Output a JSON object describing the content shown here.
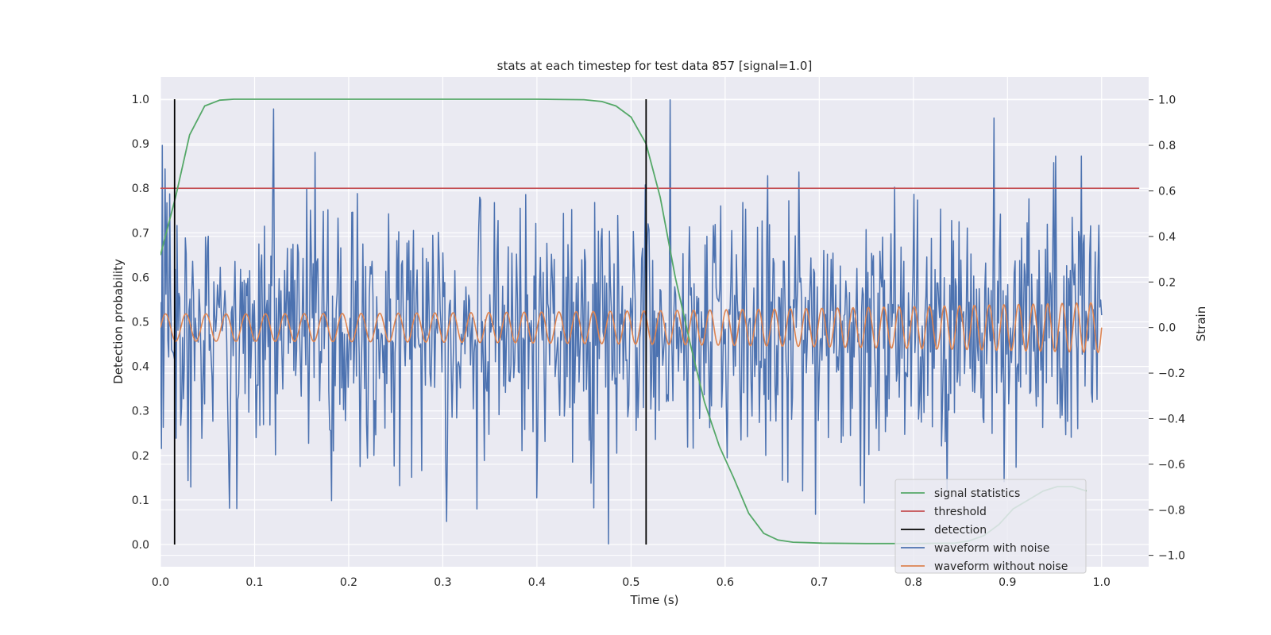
{
  "chart_data": {
    "type": "line",
    "title": "stats at each timestep for test data 857 [signal=1.0]",
    "xlabel": "Time (s)",
    "ylabel": "Detection probability",
    "ylabel_right": "Strain",
    "xlim": [
      0.0,
      1.05
    ],
    "ylim": [
      -0.05,
      1.05
    ],
    "ylim_right": [
      -1.05,
      1.1
    ],
    "x_ticks": [
      "0.0",
      "0.1",
      "0.2",
      "0.3",
      "0.4",
      "0.5",
      "0.6",
      "0.7",
      "0.8",
      "0.9",
      "1.0"
    ],
    "y_ticks": [
      "0.0",
      "0.1",
      "0.2",
      "0.3",
      "0.4",
      "0.5",
      "0.6",
      "0.7",
      "0.8",
      "0.9",
      "1.0"
    ],
    "y_ticks_right": [
      "−1.0",
      "−0.8",
      "−0.6",
      "−0.4",
      "−0.2",
      "0.0",
      "0.2",
      "0.4",
      "0.6",
      "0.8",
      "1.0"
    ],
    "grid": true,
    "legend_position": "lower-right",
    "colors": {
      "signal_statistics": "#55a868",
      "threshold": "#c44e52",
      "detection": "#000000",
      "waveform_with_noise": "#4c72b0",
      "waveform_without_noise": "#dd8452",
      "background": "#eaeaf2",
      "grid": "#ffffff"
    },
    "series": [
      {
        "name": "signal statistics",
        "axis": "left",
        "x": [
          0.0,
          0.016,
          0.031,
          0.047,
          0.063,
          0.078,
          0.094,
          0.2,
          0.3,
          0.4,
          0.45,
          0.469,
          0.484,
          0.5,
          0.516,
          0.531,
          0.547,
          0.563,
          0.578,
          0.594,
          0.609,
          0.625,
          0.641,
          0.656,
          0.672,
          0.688,
          0.703,
          0.75,
          0.8,
          0.844,
          0.859,
          0.875,
          0.891,
          0.906,
          0.922,
          0.938,
          0.953,
          0.969,
          0.984
        ],
        "values": [
          0.65,
          0.78,
          0.92,
          0.985,
          0.998,
          1.0,
          1.0,
          1.0,
          1.0,
          1.0,
          0.999,
          0.995,
          0.985,
          0.96,
          0.9,
          0.78,
          0.6,
          0.45,
          0.32,
          0.22,
          0.15,
          0.07,
          0.025,
          0.01,
          0.005,
          0.004,
          0.003,
          0.002,
          0.002,
          0.003,
          0.008,
          0.02,
          0.045,
          0.08,
          0.1,
          0.12,
          0.13,
          0.13,
          0.12
        ]
      },
      {
        "name": "threshold",
        "axis": "left",
        "x": [
          0.0,
          1.04
        ],
        "values": [
          0.8,
          0.8
        ]
      },
      {
        "name": "detection",
        "axis": "left",
        "x_positions": [
          0.015,
          0.516
        ],
        "range": [
          0.0,
          1.0
        ]
      },
      {
        "name": "waveform with noise",
        "axis": "right",
        "x_range": [
          0.0,
          1.0
        ],
        "n_points": 1024,
        "approx_std": 0.27,
        "notable_points": [
          {
            "x": 0.12,
            "y": 0.96
          },
          {
            "x": 0.542,
            "y": 1.0
          },
          {
            "x": 0.476,
            "y": -0.95
          },
          {
            "x": 0.032,
            "y": -0.7
          },
          {
            "x": 0.182,
            "y": -0.76
          },
          {
            "x": 0.696,
            "y": -0.82
          },
          {
            "x": 0.002,
            "y": 0.8
          }
        ]
      },
      {
        "name": "waveform without noise",
        "axis": "right",
        "x_range": [
          0.0,
          1.0
        ],
        "amplitude_start": 0.06,
        "amplitude_end": 0.11,
        "cycles": 56
      }
    ]
  }
}
